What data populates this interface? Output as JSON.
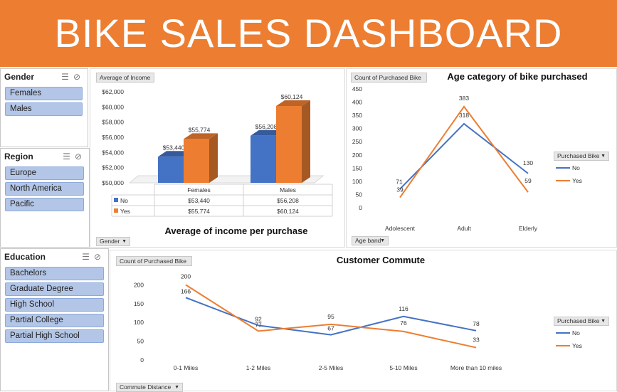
{
  "header": {
    "title": "BIKE SALES DASHBOARD"
  },
  "colors": {
    "header": "#ed7d31",
    "no": "#4472c4",
    "yes": "#ed7d31",
    "slicer_item": "#b4c6e7"
  },
  "slicers": {
    "gender": {
      "title": "Gender",
      "items": [
        "Females",
        "Males"
      ]
    },
    "region": {
      "title": "Region",
      "items": [
        "Europe",
        "North America",
        "Pacific"
      ]
    },
    "education": {
      "title": "Education",
      "items": [
        "Bachelors",
        "Graduate Degree",
        "High School",
        "Partial College",
        "Partial High School"
      ]
    },
    "icons": [
      "multi-select-icon",
      "clear-filter-icon"
    ]
  },
  "income_panel": {
    "field_button": "Average of Income",
    "axis_button": "Gender",
    "table": {
      "cols": [
        "Females",
        "Males"
      ],
      "rows": [
        {
          "key": "No",
          "values": [
            "$53,440",
            "$56,208"
          ]
        },
        {
          "key": "Yes",
          "values": [
            "$55,774",
            "$60,124"
          ]
        }
      ]
    }
  },
  "age_panel": {
    "field_button": "Count of Purchased Bike",
    "axis_button": "Age band",
    "legend_button": "Purchased Bike"
  },
  "commute_panel": {
    "field_button": "Count of Purchased Bike",
    "axis_button": "Commute Distance",
    "legend_button": "Purchased Bike"
  },
  "chart_data": [
    {
      "type": "bar",
      "title": "Average of income per purchase",
      "categories": [
        "Females",
        "Males"
      ],
      "series": [
        {
          "name": "No",
          "values": [
            53440,
            56208
          ]
        },
        {
          "name": "Yes",
          "values": [
            55774,
            60124
          ]
        }
      ],
      "data_labels": {
        "No": [
          "$53,440",
          "$56,208"
        ],
        "Yes": [
          "$55,774",
          "$60,124"
        ]
      },
      "ylim": [
        50000,
        62000
      ],
      "yticks": [
        "$50,000",
        "$52,000",
        "$54,000",
        "$56,000",
        "$58,000",
        "$60,000",
        "$62,000"
      ],
      "xlabel": "",
      "ylabel": ""
    },
    {
      "type": "line",
      "title": "Age category of bike purchased",
      "categories": [
        "Adolescent",
        "Adult",
        "Elderly"
      ],
      "series": [
        {
          "name": "No",
          "values": [
            71,
            318,
            130
          ]
        },
        {
          "name": "Yes",
          "values": [
            39,
            383,
            59
          ]
        }
      ],
      "ylim": [
        0,
        450
      ],
      "yticks": [
        "0",
        "50",
        "100",
        "150",
        "200",
        "250",
        "300",
        "350",
        "400",
        "450"
      ],
      "legend": "right"
    },
    {
      "type": "line",
      "title": "Customer Commute",
      "categories": [
        "0-1 Miles",
        "1-2 Miles",
        "2-5 Miles",
        "5-10 Miles",
        "More than 10 miles"
      ],
      "series": [
        {
          "name": "No",
          "values": [
            166,
            92,
            67,
            116,
            78
          ]
        },
        {
          "name": "Yes",
          "values": [
            200,
            77,
            95,
            76,
            33
          ]
        }
      ],
      "ylim": [
        0,
        250
      ],
      "yticks": [
        "0",
        "50",
        "100",
        "150",
        "200"
      ],
      "legend": "right"
    }
  ]
}
